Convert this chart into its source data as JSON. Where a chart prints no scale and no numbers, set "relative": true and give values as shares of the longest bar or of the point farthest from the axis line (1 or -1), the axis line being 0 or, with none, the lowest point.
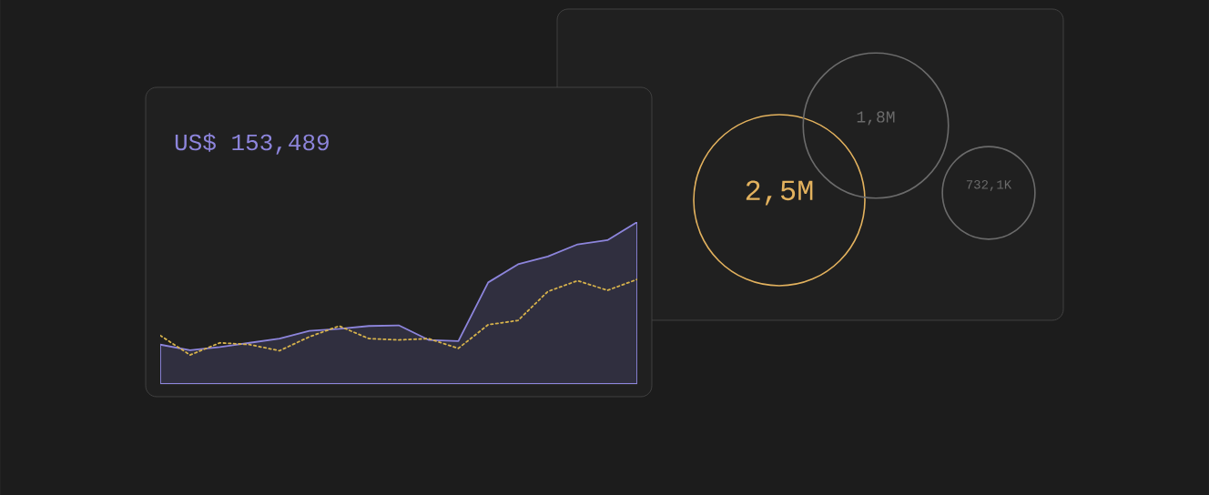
{
  "chart_data": [
    {
      "type": "line",
      "title": "US$ 153,489",
      "relative": true,
      "categories": [
        null,
        null,
        null,
        null,
        null,
        null,
        null,
        null,
        null,
        null,
        null,
        null,
        null,
        null,
        null,
        null,
        null
      ],
      "series": [
        {
          "type": "area",
          "color": "#8d85dc",
          "values": [
            0.243,
            0.209,
            0.228,
            0.254,
            0.28,
            0.328,
            0.34,
            0.358,
            0.362,
            0.272,
            0.265,
            0.627,
            0.739,
            0.787,
            0.862,
            0.888,
            1
          ]
        },
        {
          "type": "line",
          "color": "#d6b24c",
          "line_style": "dotted",
          "values": [
            0.299,
            0.179,
            0.254,
            0.243,
            0.205,
            0.291,
            0.358,
            0.28,
            0.272,
            0.28,
            0.22,
            0.366,
            0.392,
            0.571,
            0.638,
            0.578,
            0.646
          ]
        }
      ]
    },
    {
      "type": "other",
      "categories": [
        null,
        null,
        null
      ],
      "values": [
        2500000,
        1800000,
        732100
      ],
      "value_labels": [
        "2,5M",
        "1,8M",
        "732,1K"
      ],
      "colors": [
        "#e3b25e",
        "#6b6b6b",
        "#6b6b6b"
      ]
    }
  ]
}
